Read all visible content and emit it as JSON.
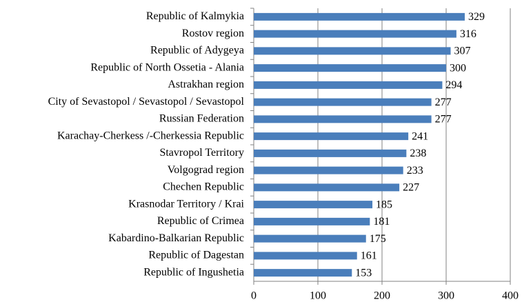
{
  "chart_data": {
    "type": "bar",
    "orientation": "horizontal",
    "categories": [
      "Republic of Kalmykia",
      "Rostov region",
      "Republic of Adygeya",
      "Republic of North Ossetia - Alania",
      "Astrakhan region",
      "City of Sevastopol / Sevastopol / Sevastopol",
      "Russian Federation",
      "Karachay-Cherkess /-Cherkessia Republic",
      "Stavropol Territory",
      "Volgograd region",
      "Chechen Republic",
      "Krasnodar Territory / Krai",
      "Republic of Crimea",
      "Kabardino-Balkarian Republic",
      "Republic of Dagestan",
      "Republic of Ingushetia"
    ],
    "values": [
      329,
      316,
      307,
      300,
      294,
      277,
      277,
      241,
      238,
      233,
      227,
      185,
      181,
      175,
      161,
      153
    ],
    "color": "#4a7ebb",
    "xlim": [
      0,
      400
    ],
    "xticks": [
      0,
      100,
      200,
      300,
      400
    ],
    "grid": true
  }
}
